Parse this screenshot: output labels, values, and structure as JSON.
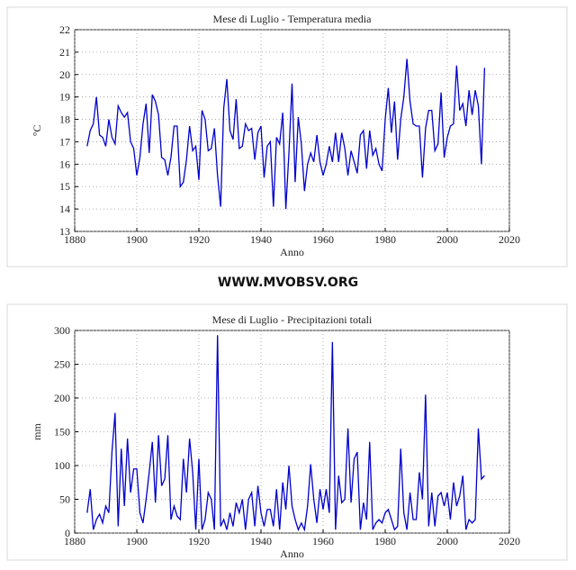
{
  "site": "WWW.MVOBSV.ORG",
  "chart_data": [
    {
      "type": "line",
      "title": "Mese di Luglio - Temperatura media",
      "xlabel": "Anno",
      "ylabel": "°C",
      "color": "#0000cc",
      "grid": true,
      "x": [
        1884,
        1885,
        1886,
        1887,
        1888,
        1889,
        1890,
        1891,
        1892,
        1893,
        1894,
        1895,
        1896,
        1897,
        1898,
        1899,
        1900,
        1901,
        1902,
        1903,
        1904,
        1905,
        1906,
        1907,
        1908,
        1909,
        1910,
        1911,
        1912,
        1913,
        1914,
        1915,
        1916,
        1917,
        1918,
        1919,
        1920,
        1921,
        1922,
        1923,
        1924,
        1925,
        1926,
        1927,
        1928,
        1929,
        1930,
        1931,
        1932,
        1933,
        1934,
        1935,
        1936,
        1937,
        1938,
        1939,
        1940,
        1941,
        1942,
        1943,
        1944,
        1945,
        1946,
        1947,
        1948,
        1949,
        1950,
        1951,
        1952,
        1953,
        1954,
        1955,
        1956,
        1957,
        1958,
        1959,
        1960,
        1961,
        1962,
        1963,
        1964,
        1965,
        1966,
        1967,
        1968,
        1969,
        1970,
        1971,
        1972,
        1973,
        1974,
        1975,
        1976,
        1977,
        1978,
        1979,
        1980,
        1981,
        1982,
        1983,
        1984,
        1985,
        1986,
        1987,
        1988,
        1989,
        1990,
        1991,
        1992,
        1993,
        1994,
        1995,
        1996,
        1997,
        1998,
        1999,
        2000,
        2001,
        2002,
        2003,
        2004,
        2005,
        2006,
        2007,
        2008,
        2009,
        2010,
        2011,
        2012
      ],
      "values": [
        16.8,
        17.5,
        17.8,
        19.0,
        17.3,
        17.2,
        16.8,
        18.0,
        17.2,
        16.9,
        18.6,
        18.3,
        18.1,
        18.3,
        17.0,
        16.7,
        15.5,
        16.3,
        17.8,
        18.7,
        16.5,
        19.1,
        18.8,
        18.2,
        16.3,
        16.2,
        15.5,
        16.3,
        17.7,
        17.7,
        15.0,
        15.2,
        16.2,
        17.7,
        16.6,
        16.8,
        15.3,
        18.4,
        18.0,
        16.6,
        16.7,
        17.6,
        15.5,
        14.1,
        18.5,
        19.8,
        17.5,
        17.1,
        18.9,
        16.7,
        16.8,
        17.8,
        17.5,
        17.6,
        16.2,
        17.4,
        17.7,
        15.4,
        16.8,
        17.0,
        14.1,
        17.2,
        16.9,
        18.3,
        14.0,
        16.5,
        19.6,
        15.2,
        18.1,
        16.9,
        14.8,
        16.0,
        16.5,
        16.1,
        17.3,
        16.1,
        15.5,
        16.0,
        16.8,
        16.1,
        17.4,
        16.1,
        17.4,
        16.7,
        15.5,
        16.6,
        16.1,
        15.6,
        17.3,
        17.5,
        15.8,
        17.5,
        16.4,
        16.7,
        16.0,
        15.7,
        18.0,
        19.4,
        17.4,
        18.8,
        16.2,
        18.0,
        19.0,
        20.7,
        18.8,
        17.8,
        17.7,
        17.7,
        15.4,
        17.6,
        18.4,
        18.4,
        16.6,
        16.9,
        19.2,
        16.3,
        17.2,
        17.7,
        17.8,
        20.4,
        18.4,
        18.7,
        17.7,
        19.3,
        18.2,
        19.3,
        18.6,
        16.0,
        20.3
      ],
      "xlim": [
        1880,
        2020
      ],
      "xticks": [
        1880,
        1900,
        1920,
        1940,
        1960,
        1980,
        2000,
        2020
      ],
      "ylim": [
        13,
        22
      ],
      "yticks": [
        13,
        14,
        15,
        16,
        17,
        18,
        19,
        20,
        21,
        22
      ]
    },
    {
      "type": "line",
      "title": "Mese di Luglio - Precipitazioni totali",
      "xlabel": "Anno",
      "ylabel": "mm",
      "color": "#0000cc",
      "grid": true,
      "x": [
        1884,
        1885,
        1886,
        1887,
        1888,
        1889,
        1890,
        1891,
        1892,
        1893,
        1894,
        1895,
        1896,
        1897,
        1898,
        1899,
        1900,
        1901,
        1902,
        1903,
        1904,
        1905,
        1906,
        1907,
        1908,
        1909,
        1910,
        1911,
        1912,
        1913,
        1914,
        1915,
        1916,
        1917,
        1918,
        1919,
        1920,
        1921,
        1922,
        1923,
        1924,
        1925,
        1926,
        1927,
        1928,
        1929,
        1930,
        1931,
        1932,
        1933,
        1934,
        1935,
        1936,
        1937,
        1938,
        1939,
        1940,
        1941,
        1942,
        1943,
        1944,
        1945,
        1946,
        1947,
        1948,
        1949,
        1950,
        1951,
        1952,
        1953,
        1954,
        1955,
        1956,
        1957,
        1958,
        1959,
        1960,
        1961,
        1962,
        1963,
        1964,
        1965,
        1966,
        1967,
        1968,
        1969,
        1970,
        1971,
        1972,
        1973,
        1974,
        1975,
        1976,
        1977,
        1978,
        1979,
        1980,
        1981,
        1982,
        1983,
        1984,
        1985,
        1986,
        1987,
        1988,
        1989,
        1990,
        1991,
        1992,
        1993,
        1994,
        1995,
        1996,
        1997,
        1998,
        1999,
        2000,
        2001,
        2002,
        2003,
        2004,
        2005,
        2006,
        2007,
        2008,
        2009,
        2010,
        2011,
        2012
      ],
      "values": [
        30,
        65,
        5,
        20,
        28,
        15,
        40,
        30,
        120,
        178,
        10,
        125,
        40,
        140,
        60,
        95,
        95,
        30,
        15,
        50,
        90,
        135,
        45,
        145,
        70,
        80,
        145,
        20,
        40,
        25,
        20,
        110,
        60,
        140,
        90,
        5,
        110,
        5,
        20,
        60,
        50,
        5,
        293,
        10,
        20,
        5,
        30,
        10,
        45,
        30,
        50,
        5,
        50,
        60,
        10,
        70,
        30,
        10,
        35,
        35,
        10,
        65,
        5,
        75,
        35,
        100,
        40,
        20,
        5,
        15,
        5,
        40,
        102,
        50,
        15,
        65,
        35,
        65,
        30,
        283,
        5,
        85,
        45,
        50,
        155,
        45,
        110,
        120,
        5,
        45,
        20,
        135,
        5,
        15,
        20,
        15,
        30,
        35,
        20,
        5,
        10,
        125,
        30,
        5,
        60,
        20,
        20,
        90,
        50,
        205,
        10,
        60,
        10,
        55,
        60,
        40,
        60,
        20,
        75,
        40,
        55,
        85,
        5,
        20,
        15,
        20,
        155,
        80,
        85
      ],
      "xlim": [
        1880,
        2020
      ],
      "xticks": [
        1880,
        1900,
        1920,
        1940,
        1960,
        1980,
        2000,
        2020
      ],
      "ylim": [
        0,
        300
      ],
      "yticks": [
        0,
        50,
        100,
        150,
        200,
        250,
        300
      ]
    }
  ]
}
